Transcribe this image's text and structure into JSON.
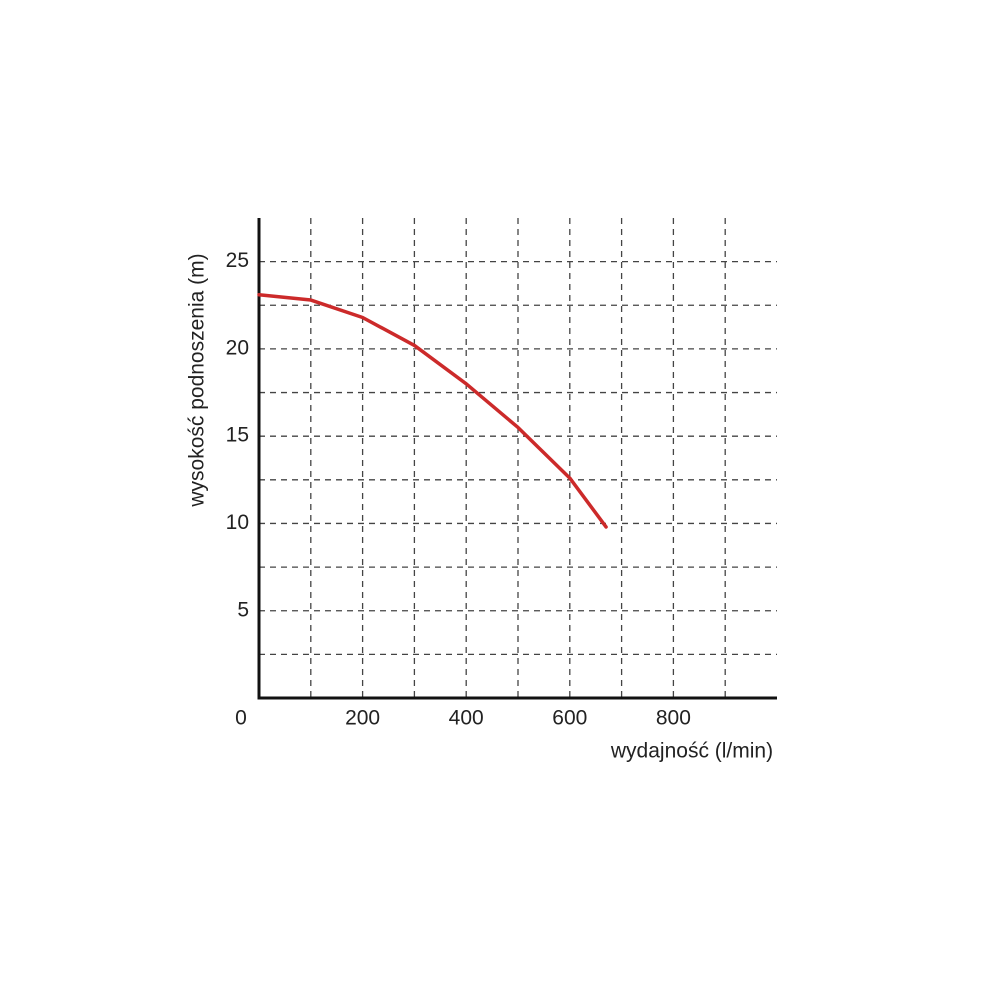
{
  "chart_data": {
    "type": "line",
    "x_label": "wydajność (l/min)",
    "y_label": "wysokość podnoszenia (m)",
    "x": [
      0,
      100,
      200,
      300,
      400,
      500,
      600,
      670
    ],
    "series": [
      {
        "color": "#cc2a2a",
        "values": [
          23.1,
          22.8,
          21.8,
          20.2,
          18.0,
          15.5,
          12.6,
          9.8
        ]
      }
    ],
    "xlim": [
      0,
      1000
    ],
    "ylim": [
      0,
      27.5
    ],
    "xticks": [
      0,
      200,
      400,
      600,
      800
    ],
    "xminor": [
      100,
      300,
      500,
      700,
      900
    ],
    "yticks": [
      5,
      10,
      15,
      20,
      25
    ],
    "yminor": [
      2.5,
      7.5,
      12.5,
      17.5,
      22.5
    ],
    "grid": true
  }
}
